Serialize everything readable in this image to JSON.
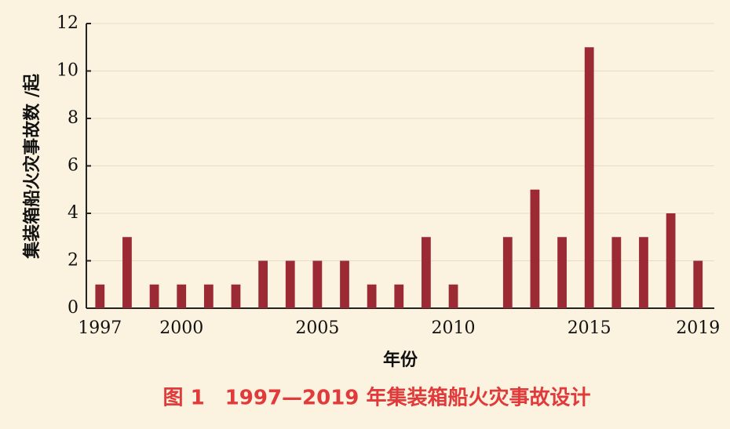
{
  "chart_data": {
    "type": "bar",
    "title": "图 1　1997—2019 年集装箱船火灾事故设计",
    "x_label": "年份",
    "y_label": "集装箱船火灾事故数 /起",
    "x": [
      1997,
      1998,
      1999,
      2000,
      2001,
      2002,
      2003,
      2004,
      2005,
      2006,
      2007,
      2008,
      2009,
      2010,
      2011,
      2012,
      2013,
      2014,
      2015,
      2016,
      2017,
      2018,
      2019
    ],
    "values": [
      1,
      3,
      1,
      1,
      1,
      1,
      2,
      2,
      2,
      2,
      1,
      1,
      3,
      1,
      0,
      3,
      5,
      3,
      11,
      3,
      3,
      4,
      2
    ],
    "color": "#9b2a35",
    "xlim": [
      1996.5,
      2019.6
    ],
    "xticks": [
      1997,
      2000,
      2005,
      2010,
      2015,
      2019
    ],
    "ylim": [
      0,
      12
    ],
    "yticks": [
      0,
      2,
      4,
      6,
      8,
      10,
      12
    ],
    "grid": true
  }
}
